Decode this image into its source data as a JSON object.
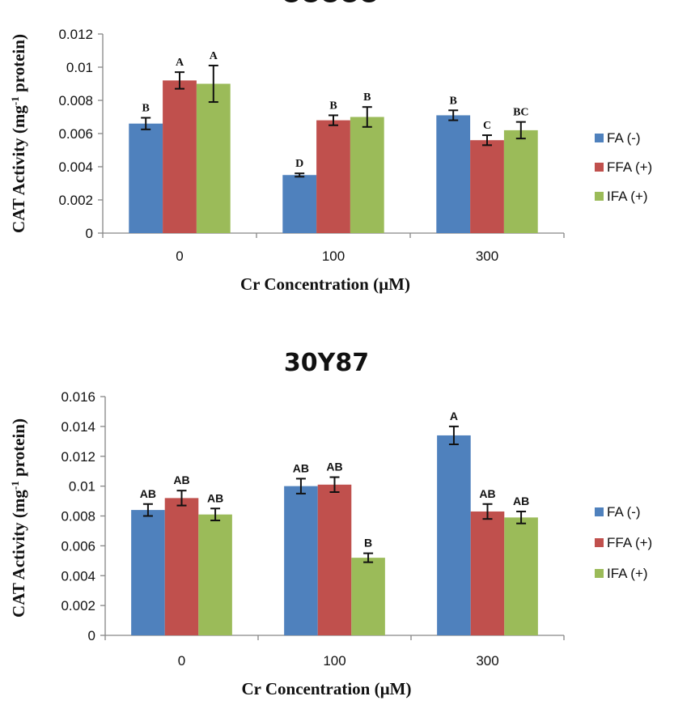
{
  "colors": {
    "FA (-)": "#4f81bd",
    "FFA (+)": "#c0504d",
    "IFA (+)": "#9bbb59",
    "axis": "#868686",
    "error": "#111111"
  },
  "chart_data": [
    {
      "type": "bar",
      "title": "",
      "title_clipped": true,
      "xlabel": "Cr Concentration (µM)",
      "ylabel_main": "CAT Activity (mg",
      "ylabel_sup": "-1",
      "ylabel_end": " protein)",
      "ylim": [
        0,
        0.012
      ],
      "yticks": [
        "0",
        "0.002",
        "0.004",
        "0.006",
        "0.008",
        "0.01",
        "0.012"
      ],
      "ytick_values": [
        0,
        0.002,
        0.004,
        0.006,
        0.008,
        0.01,
        0.012
      ],
      "categories": [
        "0",
        "100",
        "300"
      ],
      "legend_position": "right",
      "grid": false,
      "series": [
        {
          "name": "FA (-)",
          "values": [
            0.0066,
            0.0035,
            0.0071
          ],
          "errors": [
            0.00035,
            0.0001,
            0.0003
          ],
          "letters": [
            "B",
            "D",
            "B"
          ]
        },
        {
          "name": "FFA (+)",
          "values": [
            0.0092,
            0.0068,
            0.0056
          ],
          "errors": [
            0.0005,
            0.0003,
            0.0003
          ],
          "letters": [
            "A",
            "B",
            "C"
          ]
        },
        {
          "name": "IFA (+)",
          "values": [
            0.009,
            0.007,
            0.0062
          ],
          "errors": [
            0.0011,
            0.0006,
            0.0005
          ],
          "letters": [
            "A",
            "B",
            "BC"
          ]
        }
      ]
    },
    {
      "type": "bar",
      "title": "30Y87",
      "xlabel": "Cr Concentration (µM)",
      "ylabel_main": "CAT Activity (mg",
      "ylabel_sup": "-1",
      "ylabel_end": " protein)",
      "ylim": [
        0,
        0.016
      ],
      "yticks": [
        "0",
        "0.002",
        "0.004",
        "0.006",
        "0.008",
        "0.01",
        "0.012",
        "0.014",
        "0.016"
      ],
      "ytick_values": [
        0,
        0.002,
        0.004,
        0.006,
        0.008,
        0.01,
        0.012,
        0.014,
        0.016
      ],
      "categories": [
        "0",
        "100",
        "300"
      ],
      "legend_position": "right",
      "grid": false,
      "series": [
        {
          "name": "FA (-)",
          "values": [
            0.0084,
            0.01,
            0.0134
          ],
          "errors": [
            0.0004,
            0.0005,
            0.0006
          ],
          "letters": [
            "AB",
            "AB",
            "A"
          ]
        },
        {
          "name": "FFA (+)",
          "values": [
            0.0092,
            0.0101,
            0.0083
          ],
          "errors": [
            0.0005,
            0.0005,
            0.0005
          ],
          "letters": [
            "AB",
            "AB",
            "AB"
          ]
        },
        {
          "name": "IFA (+)",
          "values": [
            0.0081,
            0.0052,
            0.0079
          ],
          "errors": [
            0.0004,
            0.0003,
            0.0004
          ],
          "letters": [
            "AB",
            "B",
            "AB"
          ]
        }
      ]
    }
  ]
}
